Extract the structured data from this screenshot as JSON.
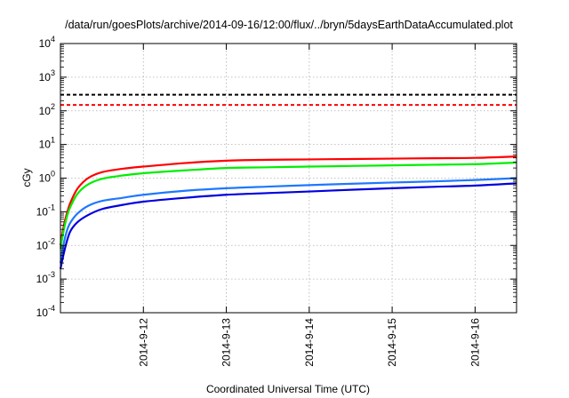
{
  "chart_data": {
    "type": "line",
    "title": "/data/run/goesPlots/archive/2014-09-16/12:00/flux/../bryn/5daysEarthDataAccumulated.plot",
    "xlabel": "Coordinated Universal Time (UTC)",
    "ylabel": "cGy",
    "yscale": "log",
    "ylim": [
      0.0001,
      10000
    ],
    "xlim": [
      "2014-09-11 00:00",
      "2014-09-16 12:00"
    ],
    "grid": true,
    "x_ticks": [
      "2014-9-12",
      "2014-9-13",
      "2014-9-14",
      "2014-9-15",
      "2014-9-16"
    ],
    "y_ticks": [
      {
        "base": "10",
        "exp": "-4"
      },
      {
        "base": "10",
        "exp": "-3"
      },
      {
        "base": "10",
        "exp": "-2"
      },
      {
        "base": "10",
        "exp": "-1"
      },
      {
        "base": "10",
        "exp": "0"
      },
      {
        "base": "10",
        "exp": "1"
      },
      {
        "base": "10",
        "exp": "2"
      },
      {
        "base": "10",
        "exp": "3"
      },
      {
        "base": "10",
        "exp": "4"
      }
    ],
    "reference_lines": [
      {
        "value": 300,
        "color": "#000000",
        "style": "dashed"
      },
      {
        "value": 150,
        "color": "#ff0000",
        "style": "dashed"
      }
    ],
    "series": [
      {
        "color": "#ff0000",
        "x": [
          "2014-09-11 00:00",
          "2014-09-11 01:00",
          "2014-09-11 02:00",
          "2014-09-11 03:00",
          "2014-09-11 05:00",
          "2014-09-11 08:00",
          "2014-09-11 12:00",
          "2014-09-11 18:00",
          "2014-09-12 00:00",
          "2014-09-12 12:00",
          "2014-09-13 00:00",
          "2014-09-13 12:00",
          "2014-09-14 00:00",
          "2014-09-14 12:00",
          "2014-09-15 00:00",
          "2014-09-15 12:00",
          "2014-09-16 00:00",
          "2014-09-16 12:00"
        ],
        "y": [
          0.01,
          0.04,
          0.1,
          0.2,
          0.5,
          1.0,
          1.5,
          1.9,
          2.2,
          2.8,
          3.3,
          3.5,
          3.6,
          3.7,
          3.8,
          3.9,
          4.0,
          4.4
        ]
      },
      {
        "color": "#00ee00",
        "x": [
          "2014-09-11 00:00",
          "2014-09-11 01:00",
          "2014-09-11 02:00",
          "2014-09-11 03:00",
          "2014-09-11 05:00",
          "2014-09-11 08:00",
          "2014-09-11 12:00",
          "2014-09-11 18:00",
          "2014-09-12 00:00",
          "2014-09-12 12:00",
          "2014-09-13 00:00",
          "2014-09-13 12:00",
          "2014-09-14 00:00",
          "2014-09-14 12:00",
          "2014-09-15 00:00",
          "2014-09-15 12:00",
          "2014-09-16 00:00",
          "2014-09-16 12:00"
        ],
        "y": [
          0.008,
          0.03,
          0.08,
          0.15,
          0.35,
          0.65,
          0.95,
          1.2,
          1.4,
          1.7,
          2.0,
          2.1,
          2.2,
          2.3,
          2.4,
          2.5,
          2.6,
          2.9
        ]
      },
      {
        "color": "#1e78ff",
        "x": [
          "2014-09-11 00:00",
          "2014-09-11 01:00",
          "2014-09-11 02:00",
          "2014-09-11 03:00",
          "2014-09-11 05:00",
          "2014-09-11 08:00",
          "2014-09-11 12:00",
          "2014-09-11 18:00",
          "2014-09-12 00:00",
          "2014-09-12 12:00",
          "2014-09-13 00:00",
          "2014-09-13 12:00",
          "2014-09-14 00:00",
          "2014-09-14 12:00",
          "2014-09-15 00:00",
          "2014-09-15 12:00",
          "2014-09-16 00:00",
          "2014-09-16 12:00"
        ],
        "y": [
          0.003,
          0.012,
          0.03,
          0.05,
          0.09,
          0.15,
          0.21,
          0.26,
          0.32,
          0.42,
          0.5,
          0.56,
          0.62,
          0.68,
          0.74,
          0.8,
          0.88,
          1.0
        ]
      },
      {
        "color": "#0000dd",
        "x": [
          "2014-09-11 00:00",
          "2014-09-11 01:00",
          "2014-09-11 02:00",
          "2014-09-11 03:00",
          "2014-09-11 05:00",
          "2014-09-11 08:00",
          "2014-09-11 12:00",
          "2014-09-11 18:00",
          "2014-09-12 00:00",
          "2014-09-12 12:00",
          "2014-09-13 00:00",
          "2014-09-13 12:00",
          "2014-09-14 00:00",
          "2014-09-14 12:00",
          "2014-09-15 00:00",
          "2014-09-15 12:00",
          "2014-09-16 00:00",
          "2014-09-16 12:00"
        ],
        "y": [
          0.002,
          0.006,
          0.015,
          0.028,
          0.05,
          0.08,
          0.12,
          0.16,
          0.2,
          0.26,
          0.32,
          0.36,
          0.4,
          0.45,
          0.5,
          0.55,
          0.6,
          0.7
        ]
      }
    ]
  }
}
